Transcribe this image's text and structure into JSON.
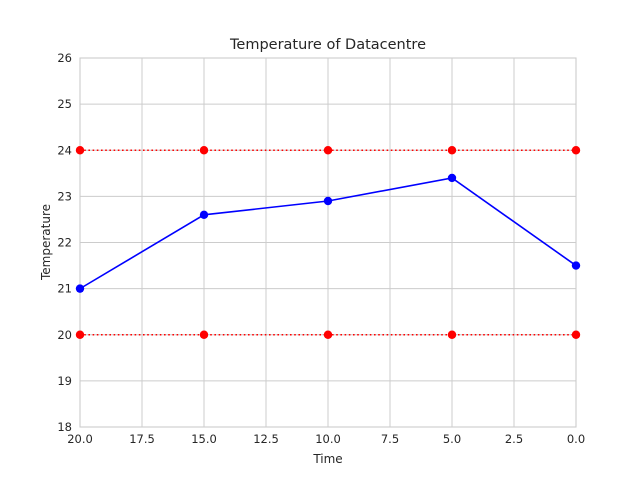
{
  "chart_data": {
    "type": "line",
    "title": "Temperature of Datacentre",
    "xlabel": "Time",
    "ylabel": "Temperature",
    "xlim": [
      20,
      0
    ],
    "ylim": [
      18,
      26
    ],
    "x_inverted": true,
    "grid": true,
    "xticks": [
      "20.0",
      "17.5",
      "15.0",
      "12.5",
      "10.0",
      "7.5",
      "5.0",
      "2.5",
      "0.0"
    ],
    "yticks": [
      "18",
      "19",
      "20",
      "21",
      "22",
      "23",
      "24",
      "25",
      "26"
    ],
    "series": [
      {
        "x": [
          20,
          15,
          10,
          5,
          0
        ],
        "y": [
          21.0,
          22.6,
          22.9,
          23.4,
          21.5
        ],
        "color": "#0000ff",
        "line_style": "solid",
        "marker": "circle"
      },
      {
        "x": [
          20,
          15,
          10,
          5,
          0
        ],
        "y": [
          24,
          24,
          24,
          24,
          24
        ],
        "color": "#ff0000",
        "line_style": "dotted",
        "marker": "circle"
      },
      {
        "x": [
          20,
          15,
          10,
          5,
          0
        ],
        "y": [
          20,
          20,
          20,
          20,
          20
        ],
        "color": "#ff0000",
        "line_style": "dotted",
        "marker": "circle"
      }
    ]
  }
}
